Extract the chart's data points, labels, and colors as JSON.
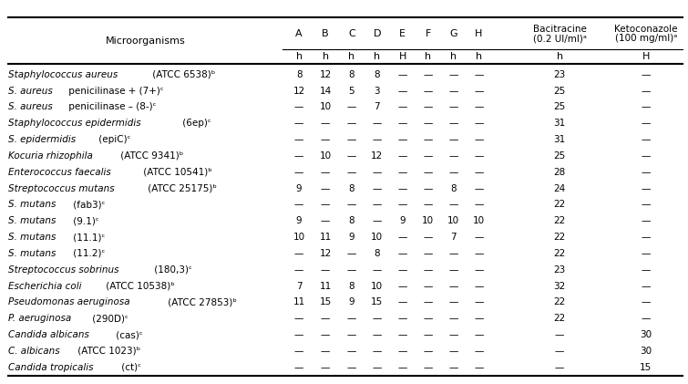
{
  "col_headers_top": [
    "A",
    "B",
    "C",
    "D",
    "E",
    "F",
    "G",
    "H",
    "Bacitracine\n(0.2 UI/ml)ᵃ",
    "Ketoconazole\n(100 mg/ml)ᵃ"
  ],
  "col_headers_sub": [
    "h",
    "h",
    "h",
    "h",
    "H",
    "h",
    "h",
    "h",
    "h",
    "H"
  ],
  "row_header": "Microorganisms",
  "rows": [
    {
      "italic_part": "Staphylococcus aureus",
      "suffix": " (ATCC 6538)ᵇ",
      "values": [
        "8",
        "12",
        "8",
        "8",
        "—",
        "—",
        "—",
        "—",
        "23",
        "—"
      ]
    },
    {
      "italic_part": "S. aureus",
      "suffix": " penicilinase + (7+)ᶜ",
      "values": [
        "12",
        "14",
        "5",
        "3",
        "—",
        "—",
        "—",
        "—",
        "25",
        "—"
      ]
    },
    {
      "italic_part": "S. aureus",
      "suffix": " penicilinase – (8-)ᶜ",
      "values": [
        "—",
        "10",
        "—",
        "7",
        "—",
        "—",
        "—",
        "—",
        "25",
        "—"
      ]
    },
    {
      "italic_part": "Staphylococcus epidermidis",
      "suffix": " (6ep)ᶜ",
      "values": [
        "—",
        "—",
        "—",
        "—",
        "—",
        "—",
        "—",
        "—",
        "31",
        "—"
      ]
    },
    {
      "italic_part": "S. epidermidis",
      "suffix": " (epiC)ᶜ",
      "values": [
        "—",
        "—",
        "—",
        "—",
        "—",
        "—",
        "—",
        "—",
        "31",
        "—"
      ]
    },
    {
      "italic_part": "Kocuria rhizophila",
      "suffix": " (ATCC 9341)ᵇ",
      "values": [
        "—",
        "10",
        "—",
        "12",
        "—",
        "—",
        "—",
        "—",
        "25",
        "—"
      ]
    },
    {
      "italic_part": "Enterococcus faecalis",
      "suffix": " (ATCC 10541)ᵇ",
      "values": [
        "—",
        "—",
        "—",
        "—",
        "—",
        "—",
        "—",
        "—",
        "28",
        "—"
      ]
    },
    {
      "italic_part": "Streptococcus mutans",
      "suffix": " (ATCC 25175)ᵇ",
      "values": [
        "9",
        "—",
        "8",
        "—",
        "—",
        "—",
        "8",
        "—",
        "24",
        "—"
      ]
    },
    {
      "italic_part": "S. mutans",
      "suffix": " (fab3)ᶜ",
      "values": [
        "—",
        "—",
        "—",
        "—",
        "—",
        "—",
        "—",
        "—",
        "22",
        "—"
      ]
    },
    {
      "italic_part": "S. mutans",
      "suffix": " (9.1)ᶜ",
      "values": [
        "9",
        "—",
        "8",
        "—",
        "9",
        "10",
        "10",
        "10",
        "22",
        "—"
      ]
    },
    {
      "italic_part": "S. mutans",
      "suffix": " (11.1)ᶜ",
      "values": [
        "10",
        "11",
        "9",
        "10",
        "—",
        "—",
        "7",
        "—",
        "22",
        "—"
      ]
    },
    {
      "italic_part": "S. mutans",
      "suffix": " (11.2)ᶜ",
      "values": [
        "—",
        "12",
        "—",
        "8",
        "—",
        "—",
        "—",
        "—",
        "22",
        "—"
      ]
    },
    {
      "italic_part": "Streptococcus sobrinus",
      "suffix": " (180,3)ᶜ",
      "values": [
        "—",
        "—",
        "—",
        "—",
        "—",
        "—",
        "—",
        "—",
        "23",
        "—"
      ]
    },
    {
      "italic_part": "Escherichia coli",
      "suffix": " (ATCC 10538)ᵇ",
      "values": [
        "7",
        "11",
        "8",
        "10",
        "—",
        "—",
        "—",
        "—",
        "32",
        "—"
      ]
    },
    {
      "italic_part": "Pseudomonas aeruginosa",
      "suffix": " (ATCC 27853)ᵇ",
      "values": [
        "11",
        "15",
        "9",
        "15",
        "—",
        "—",
        "—",
        "—",
        "22",
        "—"
      ]
    },
    {
      "italic_part": "P. aeruginosa",
      "suffix": " (290D)ᶜ",
      "values": [
        "—",
        "—",
        "—",
        "—",
        "—",
        "—",
        "—",
        "—",
        "22",
        "—"
      ]
    },
    {
      "italic_part": "Candida albicans",
      "suffix": " (cas)ᶜ",
      "values": [
        "—",
        "—",
        "—",
        "—",
        "—",
        "—",
        "—",
        "—",
        "—",
        "30"
      ]
    },
    {
      "italic_part": "C. albicans",
      "suffix": " (ATCC 1023)ᵇ",
      "values": [
        "—",
        "—",
        "—",
        "—",
        "—",
        "—",
        "—",
        "—",
        "—",
        "30"
      ]
    },
    {
      "italic_part": "Candida tropicalis",
      "suffix": " (ct)ᶜ",
      "values": [
        "—",
        "—",
        "—",
        "—",
        "—",
        "—",
        "—",
        "—",
        "—",
        "15"
      ]
    }
  ],
  "bg_color": "#ffffff",
  "text_color": "#000000",
  "fs": 7.5,
  "hfs": 8.0
}
